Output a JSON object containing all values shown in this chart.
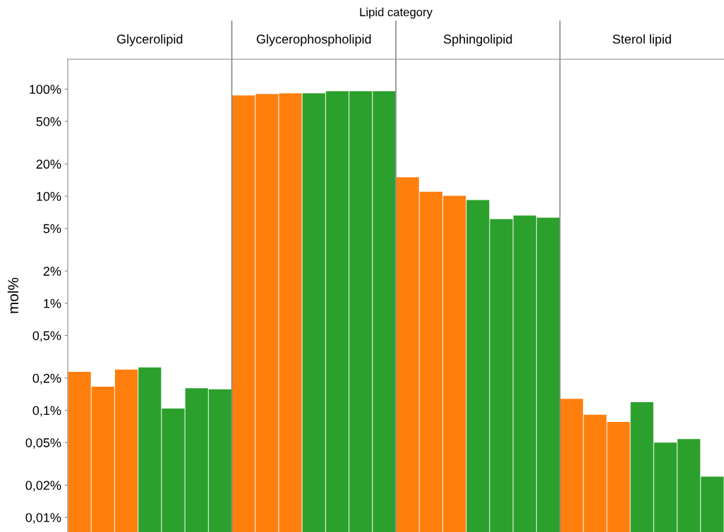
{
  "chart_data": {
    "type": "bar",
    "title": "Lipid category",
    "ylabel": "mol%",
    "log": "y",
    "tick_labels": "y",
    "categories": [
      null,
      null,
      null,
      null,
      null,
      null,
      null,
      null,
      null,
      null,
      null,
      null,
      null,
      null,
      null,
      null,
      null,
      null,
      null,
      null,
      null,
      null,
      null,
      null,
      null,
      null,
      null,
      null
    ],
    "values": [
      0.229,
      0.166,
      0.24,
      0.251,
      0.104,
      0.161,
      0.157,
      87.3,
      89.9,
      91.3,
      91.3,
      95.5,
      95.5,
      95.5,
      15.0,
      11.0,
      10.1,
      9.2,
      6.1,
      6.6,
      6.3,
      0.128,
      0.091,
      0.078,
      0.119,
      0.05,
      0.054,
      0.024
    ],
    "colors": [
      "#ff7f0e",
      "#ff7f0e",
      "#ff7f0e",
      "#2ca02c",
      "#2ca02c",
      "#2ca02c",
      "#2ca02c",
      "#ff7f0e",
      "#ff7f0e",
      "#ff7f0e",
      "#2ca02c",
      "#2ca02c",
      "#2ca02c",
      "#2ca02c",
      "#ff7f0e",
      "#ff7f0e",
      "#ff7f0e",
      "#2ca02c",
      "#2ca02c",
      "#2ca02c",
      "#2ca02c",
      "#ff7f0e",
      "#ff7f0e",
      "#ff7f0e",
      "#2ca02c",
      "#2ca02c",
      "#2ca02c",
      "#2ca02c"
    ],
    "ylim": [
      0.0073,
      190
    ],
    "yticks": [
      {
        "value": 0.01,
        "label": "0,01%"
      },
      {
        "value": 0.02,
        "label": "0,02%"
      },
      {
        "value": 0.05,
        "label": "0,05%"
      },
      {
        "value": 0.1,
        "label": "0,1%"
      },
      {
        "value": 0.2,
        "label": "0,2%"
      },
      {
        "value": 0.5,
        "label": "0,5%"
      },
      {
        "value": 1,
        "label": "1%"
      },
      {
        "value": 2,
        "label": "2%"
      },
      {
        "value": 5,
        "label": "5%"
      },
      {
        "value": 10,
        "label": "10%"
      },
      {
        "value": 20,
        "label": "20%"
      },
      {
        "value": 50,
        "label": "50%"
      },
      {
        "value": 100,
        "label": "100%"
      }
    ],
    "annotations": [
      "Glycerolipid",
      "Glycerophospholipid",
      "Sphingolipid",
      "Sterol lipid"
    ]
  }
}
